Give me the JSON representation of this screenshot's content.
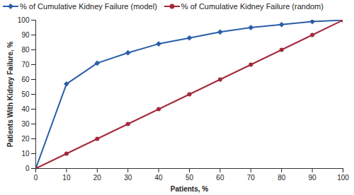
{
  "chart_data": {
    "type": "line",
    "xlabel": "Patients, %",
    "ylabel": "Patients With Kidney Failure, %",
    "x": [
      0,
      10,
      20,
      30,
      40,
      50,
      60,
      70,
      80,
      90,
      100
    ],
    "series": [
      {
        "name": "% of Cumulative Kidney Failure (model)",
        "color": "#2a5ea8",
        "marker": "diamond",
        "values": [
          0,
          57,
          71,
          78,
          84,
          88,
          92,
          95,
          97,
          99,
          100
        ]
      },
      {
        "name": "% of Cumulative Kidney Failure (random)",
        "color": "#a3293d",
        "marker": "circle",
        "values": [
          0,
          10,
          20,
          30,
          40,
          50,
          60,
          70,
          80,
          90,
          100
        ]
      }
    ],
    "xlim": [
      0,
      100
    ],
    "xticks": [
      0,
      10,
      20,
      30,
      40,
      50,
      60,
      70,
      80,
      90,
      100
    ],
    "ylim": [
      0,
      100
    ],
    "yticks": [
      0,
      10,
      20,
      30,
      40,
      50,
      60,
      70,
      80,
      90,
      100
    ],
    "grid": false,
    "legend": "top"
  }
}
